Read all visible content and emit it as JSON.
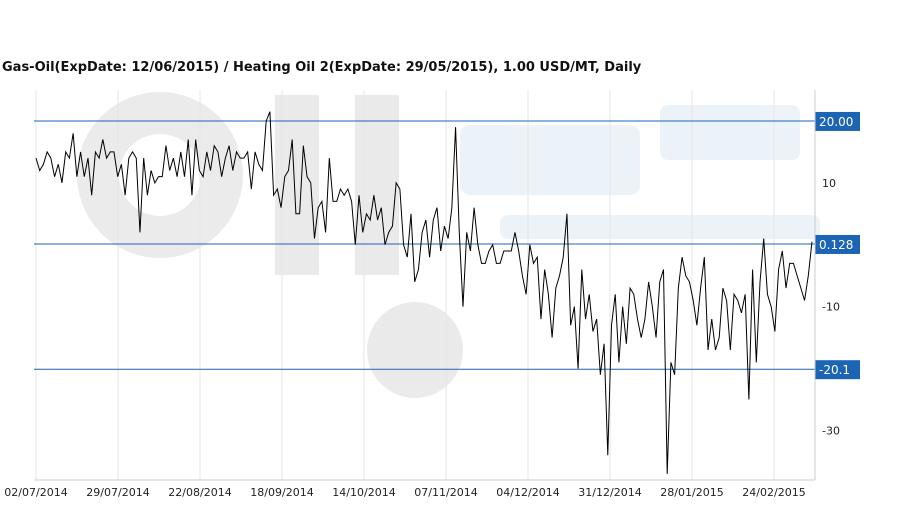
{
  "chart_data": {
    "type": "line",
    "title": "Gas-Oil(ExpDate: 12/06/2015) / Heating Oil 2(ExpDate: 29/05/2015), 1.00 USD/MT, Daily",
    "ylim": [
      -38,
      25
    ],
    "grid": "vertical",
    "x_tick_labels": [
      "02/07/2014",
      "29/07/2014",
      "22/08/2014",
      "18/09/2014",
      "14/10/2014",
      "07/11/2014",
      "04/12/2014",
      "31/12/2014",
      "28/01/2015",
      "24/02/2015"
    ],
    "y_tick_labels": [
      {
        "value": 10,
        "label": "10"
      },
      {
        "value": -10,
        "label": "-10"
      },
      {
        "value": -30,
        "label": "-30"
      }
    ],
    "reference_lines": [
      {
        "value": 20.0,
        "label": "20.00"
      },
      {
        "value": 0.128,
        "label": "0.128"
      },
      {
        "value": -20.1,
        "label": "-20.1"
      }
    ],
    "series": [
      {
        "values": [
          14,
          12,
          13,
          15,
          14,
          11,
          13,
          10,
          15,
          14,
          18,
          11,
          15,
          11,
          14,
          8,
          15,
          14,
          17,
          14,
          15,
          15,
          11,
          13,
          8,
          14,
          15,
          14,
          2,
          14,
          8,
          12,
          10,
          11,
          11,
          16,
          12,
          14,
          11,
          15,
          11,
          17,
          8,
          17,
          12,
          11,
          15,
          12,
          16,
          15,
          11,
          14,
          16,
          12,
          15,
          14,
          14,
          15,
          9,
          15,
          13,
          12,
          20,
          21.5,
          8,
          9,
          6,
          11,
          12,
          17,
          5,
          5,
          16,
          11,
          10,
          1,
          6,
          7,
          2,
          14,
          7,
          7,
          9,
          8,
          9,
          7,
          0,
          8,
          2,
          5,
          4,
          8,
          4,
          6,
          0,
          2,
          3,
          10,
          9,
          0,
          -2,
          5,
          -6,
          -4,
          2,
          4,
          -2,
          4,
          6,
          -1,
          3,
          1,
          6,
          19,
          2,
          -10,
          2,
          -1,
          6,
          0,
          -3,
          -3,
          -1,
          0,
          -3,
          -3,
          -1,
          -1,
          -1,
          2,
          -1,
          -5,
          -8,
          0,
          -3,
          -2,
          -12,
          -4,
          -8,
          -15,
          -7,
          -5,
          -2,
          5,
          -13,
          -10,
          -20,
          -4,
          -12,
          -8,
          -14,
          -12,
          -21,
          -16,
          -34,
          -13,
          -8,
          -19,
          -10,
          -16,
          -7,
          -8,
          -12,
          -15,
          -12,
          -6,
          -10,
          -15,
          -6,
          -4,
          -37,
          -19,
          -21,
          -7,
          -2,
          -5,
          -6,
          -9,
          -13,
          -7,
          -2,
          -17,
          -12,
          -17,
          -15,
          -7,
          -9,
          -17,
          -8,
          -9,
          -11,
          -8,
          -25,
          -4,
          -19,
          -6,
          1,
          -8,
          -10,
          -14,
          -4,
          -1,
          -7,
          -3,
          -3,
          -5,
          -7,
          -9,
          -5,
          0.5
        ]
      }
    ]
  }
}
